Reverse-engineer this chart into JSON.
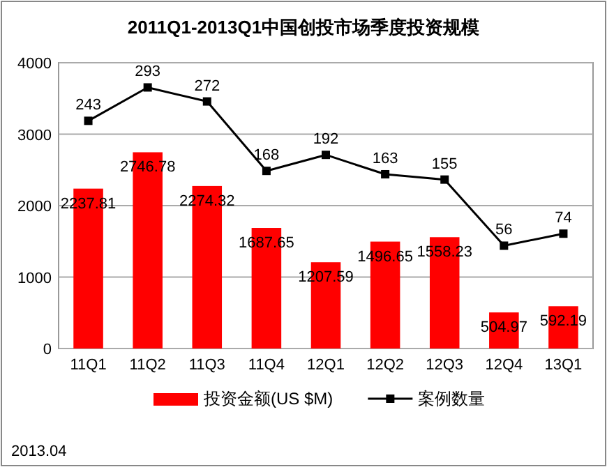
{
  "chart_data": {
    "type": "bar",
    "title": "2011Q1-2013Q1中国创投市场季度投资规模",
    "categories": [
      "11Q1",
      "11Q2",
      "11Q3",
      "11Q4",
      "12Q1",
      "12Q2",
      "12Q3",
      "12Q4",
      "13Q1"
    ],
    "series": [
      {
        "name": "投资金额(US $M)",
        "color": "#ff0000",
        "values": [
          2237.81,
          2746.78,
          2274.32,
          1687.65,
          1207.59,
          1496.65,
          1558.23,
          504.97,
          592.19
        ]
      },
      {
        "name": "案例数量",
        "type": "line",
        "axis": "y2",
        "color": "#000000",
        "marker": "square",
        "values": [
          243,
          293,
          272,
          168,
          192,
          163,
          155,
          56,
          74
        ]
      }
    ],
    "ylim": [
      0,
      4000
    ],
    "yticks": [
      0,
      1000,
      2000,
      3000,
      4000
    ],
    "y2lim": [
      -98,
      330
    ],
    "data_labels": true,
    "grid": "y",
    "legend": "bottom",
    "annotations": [
      "2013.04"
    ]
  }
}
